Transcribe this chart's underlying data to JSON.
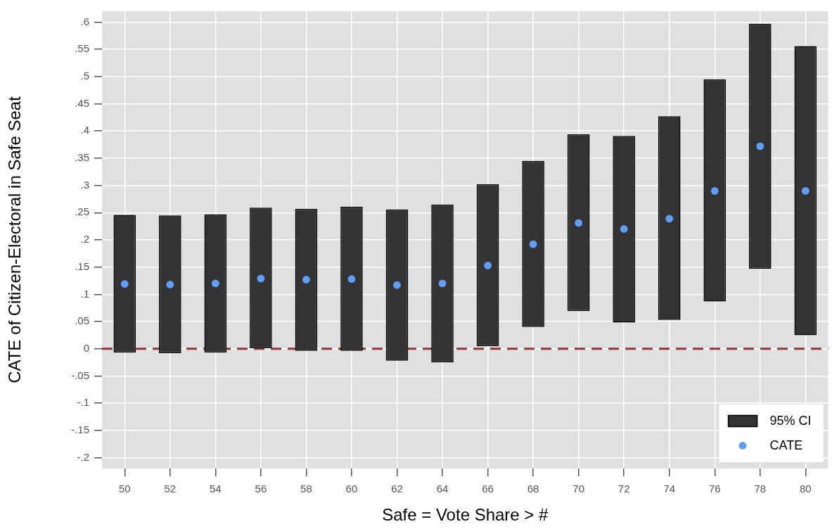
{
  "chart_data": {
    "type": "bar",
    "xlabel": "Safe = Vote Share > #",
    "ylabel": "CATE of Citizen-Electoral in Safe Seat",
    "categories": [
      "50",
      "52",
      "54",
      "56",
      "58",
      "60",
      "62",
      "64",
      "66",
      "68",
      "70",
      "72",
      "74",
      "76",
      "78",
      "80"
    ],
    "series": [
      {
        "name": "95% CI",
        "color": "#333333",
        "base": [
          -0.007,
          -0.008,
          -0.007,
          0.001,
          -0.004,
          -0.004,
          -0.022,
          -0.025,
          0.005,
          0.04,
          0.069,
          0.048,
          0.053,
          0.087,
          0.147,
          0.025
        ],
        "values": [
          0.253,
          0.253,
          0.254,
          0.258,
          0.261,
          0.265,
          0.278,
          0.29,
          0.297,
          0.305,
          0.325,
          0.343,
          0.374,
          0.408,
          0.45,
          0.531
        ]
      },
      {
        "name": "CATE",
        "type": "scatter",
        "color": "#619cff",
        "marker": "circle",
        "values": [
          0.119,
          0.118,
          0.12,
          0.129,
          0.127,
          0.128,
          0.117,
          0.12,
          0.153,
          0.192,
          0.231,
          0.22,
          0.239,
          0.29,
          0.372,
          0.29
        ]
      }
    ],
    "ylim": [
      -0.22,
      0.62
    ],
    "yticks": [
      {
        "value": -0.2,
        "label": "-.2"
      },
      {
        "value": -0.15,
        "label": "-.15"
      },
      {
        "value": -0.1,
        "label": "-.1"
      },
      {
        "value": -0.05,
        "label": "-.05"
      },
      0,
      {
        "value": 0.05,
        "label": ".05"
      },
      {
        "value": 0.1,
        "label": ".1"
      },
      {
        "value": 0.15,
        "label": ".15"
      },
      {
        "value": 0.2,
        "label": ".2"
      },
      {
        "value": 0.25,
        "label": ".25"
      },
      {
        "value": 0.3,
        "label": ".3"
      },
      {
        "value": 0.35,
        "label": ".35"
      },
      {
        "value": 0.4,
        "label": ".4"
      },
      {
        "value": 0.45,
        "label": ".45"
      },
      {
        "value": 0.5,
        "label": ".5"
      },
      {
        "value": 0.55,
        "label": ".55"
      },
      {
        "value": 0.6,
        "label": ".6"
      }
    ],
    "grid": true,
    "legend": "bottom right",
    "ref_lines": [
      {
        "axis": "y",
        "value": 0,
        "color": "#963535",
        "line_style": "dashed"
      }
    ]
  }
}
